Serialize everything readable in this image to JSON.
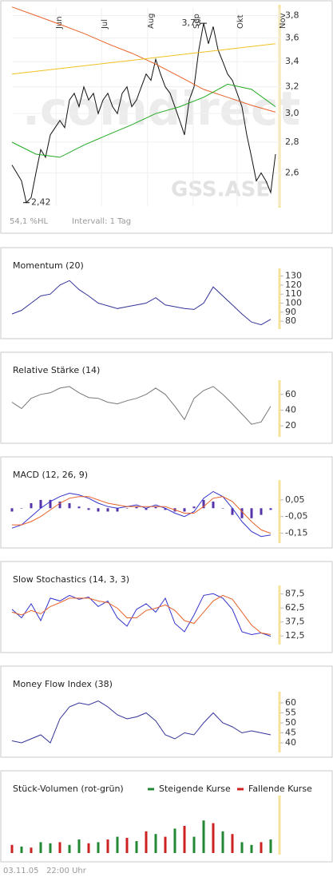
{
  "chart_data": [
    {
      "type": "line",
      "log": true,
      "grid": true,
      "xlim": [
        0,
        56
      ],
      "ylim": [
        2.4,
        3.87
      ],
      "xticks": [
        {
          "value": 9.2,
          "label": "Jun"
        },
        {
          "value": 18.7,
          "label": "Jul"
        },
        {
          "value": 28.3,
          "label": "Aug"
        },
        {
          "value": 37.8,
          "label": "Sep"
        },
        {
          "value": 47,
          "label": "Okt"
        },
        {
          "value": 55.8,
          "label": "Nov"
        }
      ],
      "yticks": [
        {
          "value": 2.6,
          "label": "2,6"
        },
        {
          "value": 2.8,
          "label": "2,8"
        },
        {
          "value": 3.0,
          "label": "3,0"
        },
        {
          "value": 3.2,
          "label": "3,2"
        },
        {
          "value": 3.4,
          "label": "3,4"
        },
        {
          "value": 3.6,
          "label": "3,6"
        },
        {
          "value": 3.8,
          "label": "3,8"
        }
      ],
      "series": [
        {
          "color": "#111111",
          "x": [
            0,
            1,
            2,
            3,
            4,
            5,
            6,
            7,
            8,
            9,
            10,
            11,
            12,
            13,
            14,
            15,
            16,
            17,
            18,
            19,
            20,
            21,
            22,
            23,
            24,
            25,
            26,
            27,
            28,
            29,
            30,
            31,
            32,
            33,
            34,
            35,
            36,
            37,
            38,
            39,
            40,
            41,
            42,
            43,
            44,
            45,
            46,
            47,
            48,
            49,
            50,
            51,
            52,
            53,
            54,
            55
          ],
          "values": [
            2.65,
            2.6,
            2.55,
            2.42,
            2.45,
            2.6,
            2.75,
            2.7,
            2.85,
            2.9,
            2.95,
            2.9,
            3.1,
            3.15,
            3.05,
            3.2,
            3.1,
            3.15,
            3.0,
            3.1,
            3.15,
            3.05,
            3.0,
            3.15,
            3.2,
            3.05,
            3.1,
            3.2,
            3.3,
            3.25,
            3.42,
            3.3,
            3.2,
            3.15,
            3.05,
            2.95,
            2.85,
            3.1,
            3.2,
            3.5,
            3.73,
            3.55,
            3.7,
            3.5,
            3.4,
            3.3,
            3.25,
            3.15,
            3.05,
            2.85,
            2.7,
            2.55,
            2.6,
            2.55,
            2.48,
            2.72
          ]
        },
        {
          "color": "#e8632a",
          "x": [
            0,
            5,
            10,
            15,
            20,
            25,
            30,
            35,
            40,
            45,
            50,
            55
          ],
          "values": [
            3.88,
            3.8,
            3.72,
            3.64,
            3.55,
            3.47,
            3.38,
            3.28,
            3.18,
            3.12,
            3.06,
            3.01
          ]
        },
        {
          "color": "#f0c020",
          "x": [
            0,
            55
          ],
          "values": [
            3.3,
            3.55
          ]
        },
        {
          "color": "#22aa22",
          "x": [
            0,
            5,
            10,
            15,
            20,
            25,
            30,
            35,
            40,
            45,
            50,
            55
          ],
          "values": [
            2.8,
            2.72,
            2.7,
            2.78,
            2.85,
            2.92,
            3.0,
            3.05,
            3.12,
            3.22,
            3.18,
            3.05
          ]
        }
      ],
      "annotations": [
        {
          "text": "3,73",
          "x": 40,
          "y": 3.73
        },
        {
          "text": "2,42",
          "x": 3,
          "y": 2.42
        }
      ],
      "watermark": ".comdirect",
      "symbol": "GSS.ASE",
      "hl_label": "54,1 %HL",
      "interval": "Intervall: 1 Tag"
    },
    {
      "type": "line",
      "title": "Momentum (20)",
      "xlim": [
        0,
        56
      ],
      "ylim": [
        73,
        135
      ],
      "yticks": [
        80,
        90,
        100,
        110,
        120,
        130
      ],
      "x": [
        0,
        2,
        4,
        6,
        8,
        10,
        12,
        14,
        16,
        18,
        20,
        22,
        24,
        26,
        28,
        30,
        32,
        34,
        36,
        38,
        40,
        42,
        44,
        46,
        48,
        50,
        52,
        54
      ],
      "series": [
        {
          "color": "#333399",
          "values": [
            88,
            92,
            100,
            108,
            110,
            120,
            125,
            115,
            108,
            100,
            97,
            94,
            96,
            98,
            100,
            106,
            98,
            96,
            94,
            93,
            100,
            118,
            108,
            98,
            88,
            79,
            76,
            82
          ]
        }
      ]
    },
    {
      "type": "line",
      "title": "Relative Stärke (14)",
      "xlim": [
        0,
        56
      ],
      "ylim": [
        8,
        74
      ],
      "yticks": [
        20,
        40,
        60
      ],
      "x": [
        0,
        2,
        4,
        6,
        8,
        10,
        12,
        14,
        16,
        18,
        20,
        22,
        24,
        26,
        28,
        30,
        32,
        34,
        36,
        38,
        40,
        42,
        44,
        46,
        48,
        50,
        52,
        54
      ],
      "series": [
        {
          "color": "#777777",
          "values": [
            50,
            42,
            55,
            60,
            62,
            68,
            70,
            62,
            56,
            55,
            50,
            48,
            52,
            55,
            60,
            68,
            60,
            45,
            28,
            55,
            65,
            70,
            60,
            48,
            35,
            22,
            25,
            45
          ]
        }
      ]
    },
    {
      "type": "line",
      "title": "MACD (12, 26, 9)",
      "xlim": [
        0,
        56
      ],
      "ylim": [
        -0.2,
        0.15
      ],
      "yticks": [
        {
          "value": -0.15,
          "label": "-0,15"
        },
        {
          "value": -0.05,
          "label": "-0,05"
        },
        {
          "value": 0.05,
          "label": "0,05"
        }
      ],
      "x": [
        0,
        2,
        4,
        6,
        8,
        10,
        12,
        14,
        16,
        18,
        20,
        22,
        24,
        26,
        28,
        30,
        32,
        34,
        36,
        38,
        40,
        42,
        44,
        46,
        48,
        50,
        52,
        54
      ],
      "series": [
        {
          "type": "bar",
          "color": "#5533aa",
          "values": [
            -0.02,
            0,
            0.03,
            0.05,
            0.05,
            0.04,
            0.03,
            0.01,
            -0.01,
            -0.02,
            -0.02,
            -0.02,
            0,
            0.01,
            -0.01,
            0.01,
            -0.01,
            -0.02,
            -0.02,
            0.01,
            0.05,
            0.04,
            0,
            -0.04,
            -0.06,
            -0.06,
            -0.04,
            -0.01
          ]
        },
        {
          "color": "#3333cc",
          "values": [
            -0.12,
            -0.1,
            -0.05,
            0.0,
            0.04,
            0.07,
            0.09,
            0.08,
            0.06,
            0.03,
            0.01,
            0.0,
            0.01,
            0.02,
            0.0,
            0.02,
            0.0,
            -0.03,
            -0.05,
            -0.02,
            0.06,
            0.1,
            0.07,
            0.0,
            -0.08,
            -0.14,
            -0.17,
            -0.16
          ]
        },
        {
          "color": "#e8632a",
          "values": [
            -0.1,
            -0.1,
            -0.08,
            -0.05,
            -0.01,
            0.03,
            0.06,
            0.07,
            0.07,
            0.05,
            0.03,
            0.02,
            0.01,
            0.01,
            0.01,
            0.01,
            0.01,
            -0.01,
            -0.03,
            -0.03,
            0.01,
            0.06,
            0.07,
            0.04,
            -0.02,
            -0.08,
            -0.13,
            -0.15
          ]
        }
      ]
    },
    {
      "type": "line",
      "title": "Slow Stochastics (14, 3, 3)",
      "xlim": [
        0,
        56
      ],
      "ylim": [
        0,
        97
      ],
      "yticks": [
        {
          "value": 12.5,
          "label": "12,5"
        },
        {
          "value": 37.5,
          "label": "37,5"
        },
        {
          "value": 62.5,
          "label": "62,5"
        },
        {
          "value": 87.5,
          "label": "87,5"
        }
      ],
      "x": [
        0,
        2,
        4,
        6,
        8,
        10,
        12,
        14,
        16,
        18,
        20,
        22,
        24,
        26,
        28,
        30,
        32,
        34,
        36,
        38,
        40,
        42,
        44,
        46,
        48,
        50,
        52,
        54
      ],
      "series": [
        {
          "color": "#3333cc",
          "values": [
            60,
            45,
            70,
            40,
            80,
            75,
            85,
            78,
            82,
            65,
            75,
            45,
            30,
            60,
            70,
            55,
            80,
            35,
            20,
            50,
            85,
            88,
            80,
            60,
            20,
            15,
            18,
            12
          ]
        },
        {
          "color": "#e8632a",
          "values": [
            55,
            50,
            58,
            52,
            65,
            72,
            80,
            80,
            80,
            75,
            72,
            62,
            45,
            45,
            58,
            62,
            68,
            58,
            40,
            35,
            55,
            75,
            85,
            78,
            55,
            32,
            18,
            15
          ]
        }
      ]
    },
    {
      "type": "line",
      "title": "Money Flow Index (38)",
      "xlim": [
        0,
        56
      ],
      "ylim": [
        36,
        64
      ],
      "yticks": [
        40,
        45,
        50,
        55,
        60
      ],
      "x": [
        0,
        2,
        4,
        6,
        8,
        10,
        12,
        14,
        16,
        18,
        20,
        22,
        24,
        26,
        28,
        30,
        32,
        34,
        36,
        38,
        40,
        42,
        44,
        46,
        48,
        50,
        52,
        54
      ],
      "series": [
        {
          "color": "#333399",
          "values": [
            41,
            40,
            42,
            44,
            40,
            52,
            58,
            60,
            59,
            61,
            58,
            54,
            52,
            53,
            55,
            51,
            44,
            42,
            45,
            44,
            50,
            55,
            50,
            48,
            45,
            46,
            45,
            44
          ]
        }
      ]
    },
    {
      "type": "bar",
      "title": "Stück-Volumen (rot-grün)",
      "xlim": [
        0,
        56
      ],
      "ylim": [
        0,
        100
      ],
      "x": [
        0,
        2,
        4,
        6,
        8,
        10,
        12,
        14,
        16,
        18,
        20,
        22,
        24,
        26,
        28,
        30,
        32,
        34,
        36,
        38,
        40,
        42,
        44,
        46,
        48,
        50,
        52,
        54
      ],
      "series": [
        {
          "name": "Steigende Kurse",
          "color": "#228833",
          "values": [
            null,
            12,
            null,
            20,
            18,
            null,
            15,
            25,
            null,
            20,
            null,
            30,
            null,
            22,
            null,
            35,
            null,
            45,
            null,
            30,
            60,
            null,
            40,
            null,
            20,
            15,
            null,
            25
          ]
        },
        {
          "name": "Fallende Kurse",
          "color": "#cc2222",
          "values": [
            15,
            null,
            10,
            null,
            null,
            20,
            null,
            null,
            18,
            null,
            25,
            null,
            28,
            null,
            40,
            null,
            30,
            null,
            50,
            null,
            null,
            55,
            null,
            35,
            null,
            null,
            20,
            null
          ]
        }
      ]
    }
  ],
  "timestamp": "03.11.05   22:00 Uhr"
}
